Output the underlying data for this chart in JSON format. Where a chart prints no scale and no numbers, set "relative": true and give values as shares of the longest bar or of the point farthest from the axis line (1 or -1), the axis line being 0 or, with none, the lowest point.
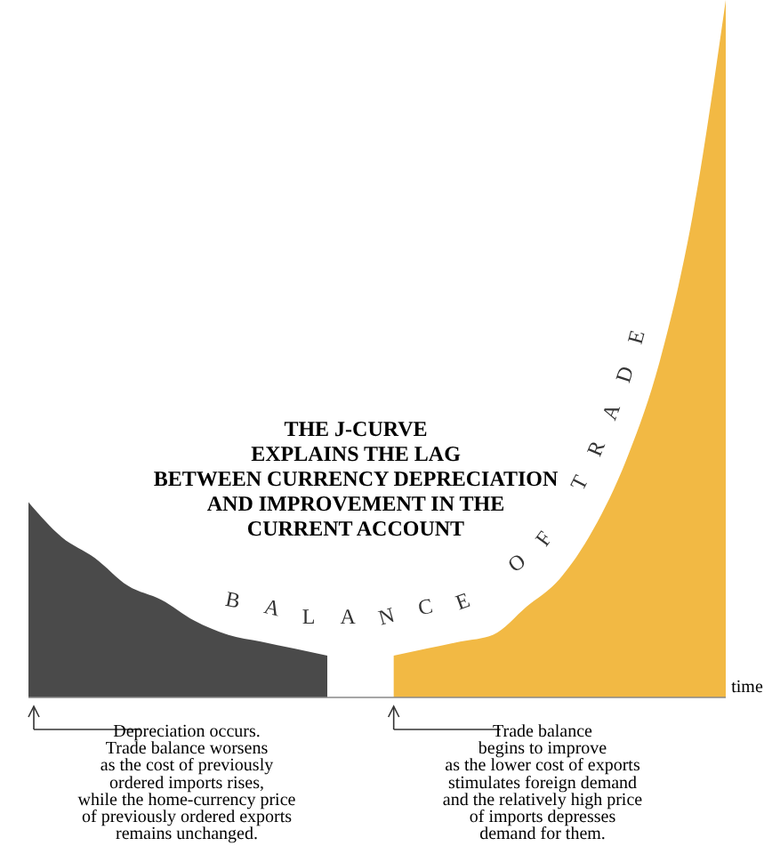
{
  "chart_data": {
    "type": "area",
    "relative": true,
    "title": "THE J-CURVE\nEXPLAINS THE LAG\nBETWEEN CURRENCY DEPRECIATION\nAND IMPROVEMENT IN THE\nCURRENT ACCOUNT",
    "ylabel": "BALANCE OF TRADE",
    "xlabel": "time",
    "categories": [
      null,
      null,
      null,
      null,
      null,
      null,
      null,
      null,
      null,
      null,
      null,
      null,
      null,
      null,
      null,
      null,
      null,
      null,
      null,
      null,
      null,
      null
    ],
    "series": [
      {
        "color": "#4a4a4a",
        "values": [
          0.28,
          0.23,
          0.2,
          0.16,
          0.14,
          0.11,
          0.09,
          0.08,
          0.07,
          0.06,
          null,
          null,
          null,
          null,
          null,
          null,
          null,
          null,
          null,
          null,
          null,
          null
        ]
      },
      {
        "color": "#f2b944",
        "values": [
          null,
          null,
          null,
          null,
          null,
          null,
          null,
          null,
          null,
          null,
          null,
          0.06,
          0.07,
          0.08,
          0.09,
          0.13,
          0.17,
          0.24,
          0.34,
          0.48,
          0.69,
          1.0
        ]
      }
    ],
    "annotations": [
      "Depreciation occurs.\nTrade balance worsens\nas the cost of previously\nordered imports rises,\nwhile the home-currency price\nof previously ordered exports\nremains unchanged.",
      "Trade balance\nbegins to improve\nas the lower cost of exports\nstimulates foreign demand\nand the relatively high price\nof imports depresses\ndemand for them."
    ]
  }
}
